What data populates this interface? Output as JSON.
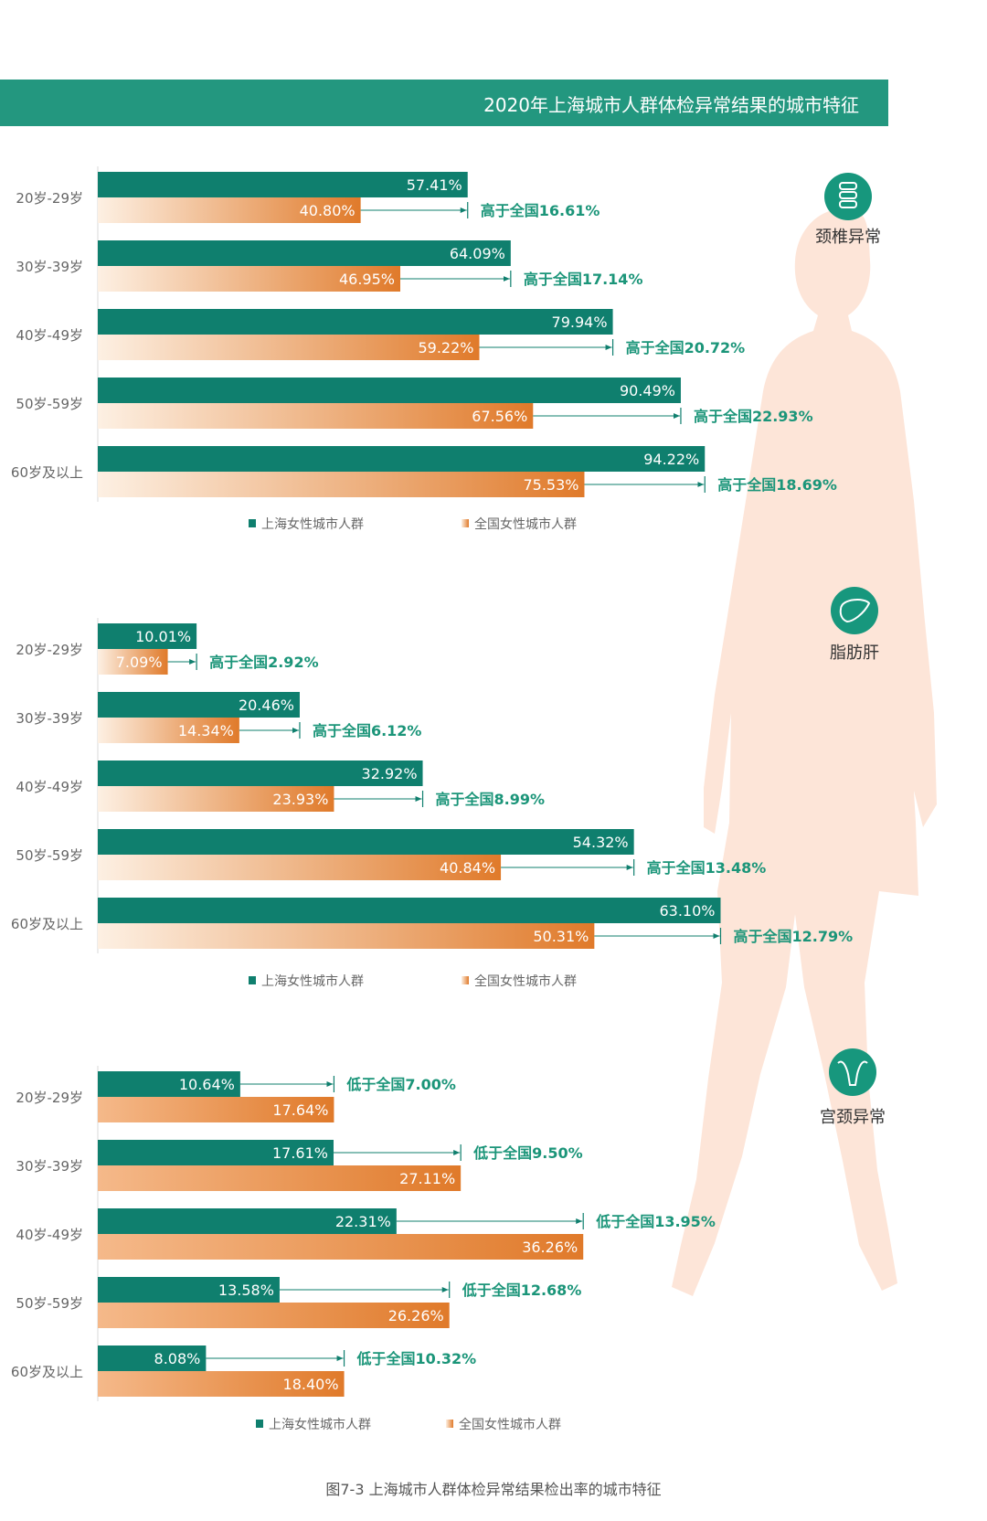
{
  "title": "2020年上海城市人群体检异常结果的城市特征",
  "caption": "图7-3 上海城市人群体检异常结果检出率的城市特征",
  "colors": {
    "shanghai": "#0f7f6e",
    "national_dark": "#e07a2a",
    "national_light": "#fdf0e3",
    "diff_text": "#1b9579",
    "silhouette": "#fde5d8"
  },
  "chart_data": [
    {
      "type": "bar",
      "name": "颈椎异常",
      "icon": "spine-icon",
      "categories": [
        "20岁-29岁",
        "30岁-39岁",
        "40岁-49岁",
        "50岁-59岁",
        "60岁及以上"
      ],
      "series": [
        {
          "name": "上海女性城市人群",
          "values": [
            57.41,
            64.09,
            79.94,
            90.49,
            94.22
          ],
          "labels": [
            "57.41%",
            "64.09%",
            "79.94%",
            "90.49%",
            "94.22%"
          ]
        },
        {
          "name": "全国女性城市人群",
          "values": [
            40.8,
            46.95,
            59.22,
            67.56,
            75.53
          ],
          "labels": [
            "40.80%",
            "46.95%",
            "59.22%",
            "67.56%",
            "75.53%"
          ]
        }
      ],
      "annotations": [
        "高于全国16.61%",
        "高于全国17.14%",
        "高于全国20.72%",
        "高于全国22.93%",
        "高于全国18.69%"
      ],
      "xlim": [
        0,
        100
      ]
    },
    {
      "type": "bar",
      "name": "脂肪肝",
      "icon": "liver-icon",
      "categories": [
        "20岁-29岁",
        "30岁-39岁",
        "40岁-49岁",
        "50岁-59岁",
        "60岁及以上"
      ],
      "series": [
        {
          "name": "上海女性城市人群",
          "values": [
            10.01,
            20.46,
            32.92,
            54.32,
            63.1
          ],
          "labels": [
            "10.01%",
            "20.46%",
            "32.92%",
            "54.32%",
            "63.10%"
          ]
        },
        {
          "name": "全国女性城市人群",
          "values": [
            7.09,
            14.34,
            23.93,
            40.84,
            50.31
          ],
          "labels": [
            "7.09%",
            "14.34%",
            "23.93%",
            "40.84%",
            "50.31%"
          ]
        }
      ],
      "annotations": [
        "高于全国2.92%",
        "高于全国6.12%",
        "高于全国8.99%",
        "高于全国13.48%",
        "高于全国12.79%"
      ],
      "xlim": [
        0,
        100
      ]
    },
    {
      "type": "bar",
      "name": "宫颈异常",
      "icon": "uterus-icon",
      "categories": [
        "20岁-29岁",
        "30岁-39岁",
        "40岁-49岁",
        "50岁-59岁",
        "60岁及以上"
      ],
      "series": [
        {
          "name": "上海女性城市人群",
          "values": [
            10.64,
            17.61,
            22.31,
            13.58,
            8.08
          ],
          "labels": [
            "10.64%",
            "17.61%",
            "22.31%",
            "13.58%",
            "8.08%"
          ]
        },
        {
          "name": "全国女性城市人群",
          "values": [
            17.64,
            27.11,
            36.26,
            26.26,
            18.4
          ],
          "labels": [
            "17.64%",
            "27.11%",
            "36.26%",
            "26.26%",
            "18.40%"
          ]
        }
      ],
      "annotations": [
        "低于全国7.00%",
        "低于全国9.50%",
        "低于全国13.95%",
        "低于全国12.68%",
        "低于全国10.32%"
      ],
      "xlim": [
        0,
        40
      ]
    }
  ]
}
